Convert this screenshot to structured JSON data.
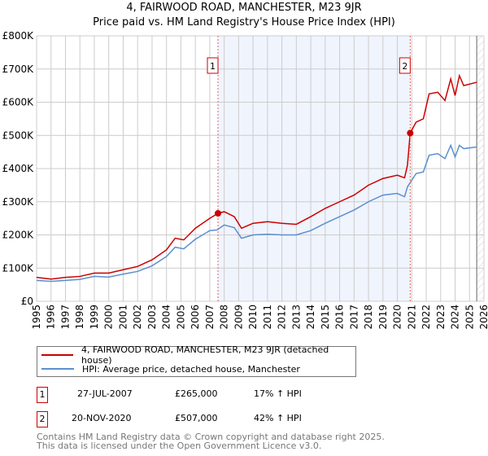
{
  "title": "4, FAIRWOOD ROAD, MANCHESTER, M23 9JR",
  "subtitle": "Price paid vs. HM Land Registry's House Price Index (HPI)",
  "legend": [
    {
      "label": "4, FAIRWOOD ROAD, MANCHESTER, M23 9JR (detached house)",
      "color": "#cc0000"
    },
    {
      "label": "HPI: Average price, detached house, Manchester",
      "color": "#5b8fd0"
    }
  ],
  "sales": [
    {
      "num": "1",
      "date": "27-JUL-2007",
      "price": "£265,000",
      "hpi": "17% ↑ HPI",
      "x": 2007.57,
      "y": 265
    },
    {
      "num": "2",
      "date": "20-NOV-2020",
      "price": "£507,000",
      "hpi": "42% ↑ HPI",
      "x": 2020.89,
      "y": 507
    }
  ],
  "footer": [
    "Contains HM Land Registry data © Crown copyright and database right 2025.",
    "This data is licensed under the Open Government Licence v3.0."
  ],
  "chart_data": {
    "type": "line",
    "title": "4, FAIRWOOD ROAD, MANCHESTER, M23 9JR",
    "xlim": [
      1995,
      2026
    ],
    "ylim": [
      0,
      800
    ],
    "y_unit": "£K",
    "yticks": [
      {
        "v": 0,
        "label": "£0"
      },
      {
        "v": 100,
        "label": "£100K"
      },
      {
        "v": 200,
        "label": "£200K"
      },
      {
        "v": 300,
        "label": "£300K"
      },
      {
        "v": 400,
        "label": "£400K"
      },
      {
        "v": 500,
        "label": "£500K"
      },
      {
        "v": 600,
        "label": "£600K"
      },
      {
        "v": 700,
        "label": "£700K"
      },
      {
        "v": 800,
        "label": "£800K"
      }
    ],
    "xticks": [
      "1995",
      "1996",
      "1997",
      "1998",
      "1999",
      "2000",
      "2001",
      "2002",
      "2003",
      "2004",
      "2005",
      "2006",
      "2007",
      "2008",
      "2009",
      "2010",
      "2011",
      "2012",
      "2013",
      "2014",
      "2015",
      "2016",
      "2017",
      "2018",
      "2019",
      "2020",
      "2021",
      "2022",
      "2023",
      "2024",
      "2025",
      "2026"
    ],
    "grid": true,
    "shaded_range": [
      2007.57,
      2020.89
    ],
    "forecast_hatch_from": 2025.5,
    "series": [
      {
        "name": "4, FAIRWOOD ROAD, MANCHESTER, M23 9JR (detached house)",
        "color": "#cc0000",
        "points": [
          [
            1995,
            72
          ],
          [
            1996,
            67
          ],
          [
            1997,
            72
          ],
          [
            1998,
            75
          ],
          [
            1999,
            85
          ],
          [
            2000,
            85
          ],
          [
            2001,
            95
          ],
          [
            2002,
            105
          ],
          [
            2003,
            125
          ],
          [
            2004,
            155
          ],
          [
            2004.6,
            190
          ],
          [
            2005.2,
            185
          ],
          [
            2006,
            220
          ],
          [
            2007,
            250
          ],
          [
            2007.57,
            265
          ],
          [
            2008,
            270
          ],
          [
            2008.7,
            255
          ],
          [
            2009.2,
            220
          ],
          [
            2010,
            235
          ],
          [
            2011,
            240
          ],
          [
            2012,
            235
          ],
          [
            2013,
            232
          ],
          [
            2014,
            255
          ],
          [
            2015,
            280
          ],
          [
            2016,
            300
          ],
          [
            2017,
            320
          ],
          [
            2018,
            350
          ],
          [
            2019,
            370
          ],
          [
            2020,
            380
          ],
          [
            2020.5,
            372
          ],
          [
            2020.7,
            410
          ],
          [
            2020.89,
            507
          ],
          [
            2021.3,
            540
          ],
          [
            2021.8,
            550
          ],
          [
            2022.2,
            625
          ],
          [
            2022.8,
            630
          ],
          [
            2023.3,
            605
          ],
          [
            2023.7,
            670
          ],
          [
            2024,
            620
          ],
          [
            2024.3,
            680
          ],
          [
            2024.6,
            650
          ],
          [
            2025.5,
            660
          ]
        ]
      },
      {
        "name": "HPI: Average price, detached house, Manchester",
        "color": "#5b8fd0",
        "points": [
          [
            1995,
            63
          ],
          [
            1996,
            60
          ],
          [
            1997,
            63
          ],
          [
            1998,
            66
          ],
          [
            1999,
            75
          ],
          [
            2000,
            73
          ],
          [
            2001,
            82
          ],
          [
            2002,
            90
          ],
          [
            2003,
            107
          ],
          [
            2004,
            135
          ],
          [
            2004.6,
            163
          ],
          [
            2005.2,
            158
          ],
          [
            2006,
            187
          ],
          [
            2007,
            213
          ],
          [
            2007.5,
            215
          ],
          [
            2008,
            230
          ],
          [
            2008.7,
            222
          ],
          [
            2009.2,
            190
          ],
          [
            2010,
            200
          ],
          [
            2011,
            202
          ],
          [
            2012,
            200
          ],
          [
            2013,
            200
          ],
          [
            2014,
            213
          ],
          [
            2015,
            235
          ],
          [
            2016,
            255
          ],
          [
            2017,
            275
          ],
          [
            2018,
            300
          ],
          [
            2019,
            320
          ],
          [
            2020,
            325
          ],
          [
            2020.5,
            315
          ],
          [
            2020.7,
            345
          ],
          [
            2021.3,
            385
          ],
          [
            2021.8,
            390
          ],
          [
            2022.2,
            440
          ],
          [
            2022.8,
            445
          ],
          [
            2023.3,
            430
          ],
          [
            2023.7,
            470
          ],
          [
            2024,
            435
          ],
          [
            2024.3,
            470
          ],
          [
            2024.6,
            460
          ],
          [
            2025.5,
            465
          ]
        ]
      }
    ]
  }
}
